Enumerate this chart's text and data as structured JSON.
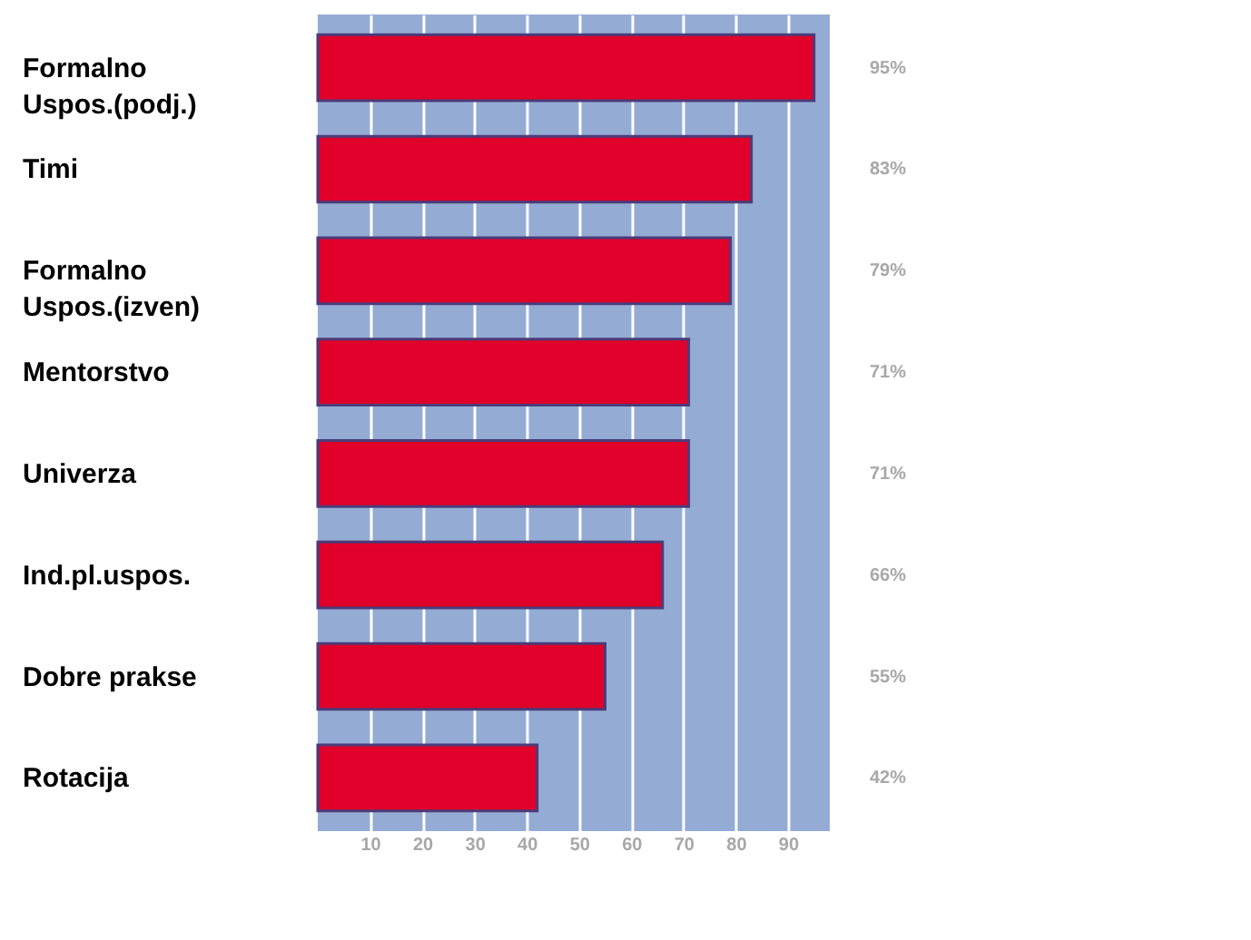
{
  "chart_data": {
    "type": "bar",
    "orientation": "horizontal",
    "categories": [
      "Formalno\nUspos.(podj.)",
      "Timi",
      "Formalno\nUspos.(izven)",
      "Mentorstvo",
      "Univerza",
      "Ind.pl.uspos.",
      "Dobre prakse",
      "Rotacija"
    ],
    "values": [
      95,
      83,
      79,
      71,
      71,
      66,
      55,
      42
    ],
    "value_labels": [
      "95%",
      "83%",
      "79%",
      "71%",
      "71%",
      "66%",
      "55%",
      "42%"
    ],
    "color": "#e0002a",
    "xlim": [
      0,
      98
    ],
    "xticks": [
      10,
      20,
      30,
      40,
      50,
      60,
      70,
      80,
      90
    ],
    "grid": "x"
  }
}
